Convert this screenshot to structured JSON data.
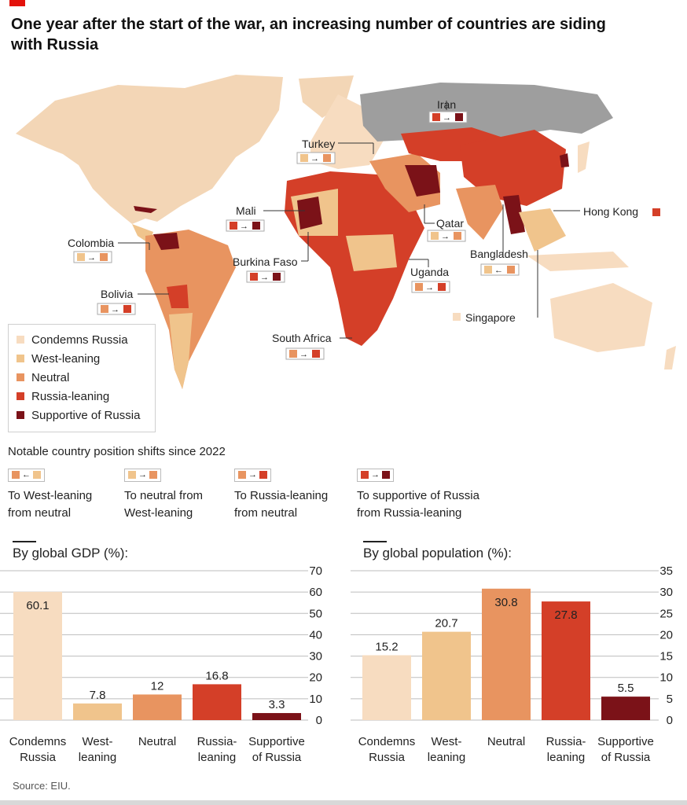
{
  "title": "One year after the start of the war, an increasing number of countries are siding with Russia",
  "colors": {
    "condemns": "#f7dcc0",
    "west": "#f0c48c",
    "neutral": "#e89460",
    "russia_leaning": "#d43f28",
    "supportive": "#7b1218",
    "no_data": "#9e9e9e"
  },
  "legend": [
    {
      "label": "Condemns Russia",
      "color": "#f7dcc0"
    },
    {
      "label": "West-leaning",
      "color": "#f0c48c"
    },
    {
      "label": "Neutral",
      "color": "#e89460"
    },
    {
      "label": "Russia-leaning",
      "color": "#d43f28"
    },
    {
      "label": "Supportive of Russia",
      "color": "#7b1218"
    }
  ],
  "map_labels": {
    "iran": "Iran",
    "turkey": "Turkey",
    "mali": "Mali",
    "colombia": "Colombia",
    "burkina_faso": "Burkina Faso",
    "bolivia": "Bolivia",
    "qatar": "Qatar",
    "hong_kong": "Hong Kong",
    "bangladesh": "Bangladesh",
    "uganda": "Uganda",
    "singapore": "Singapore",
    "south_africa": "South Africa"
  },
  "shifts": {
    "title": "Notable country position shifts since 2022",
    "items": [
      {
        "text": "To West-leaning\nfrom neutral",
        "from": "#e89460",
        "to": "#f0c48c",
        "arrow": "←"
      },
      {
        "text": "To neutral from\nWest-leaning",
        "from": "#f0c48c",
        "to": "#e89460",
        "arrow": "→"
      },
      {
        "text": "To Russia-leaning\nfrom neutral",
        "from": "#e89460",
        "to": "#d43f28",
        "arrow": "→"
      },
      {
        "text": "To supportive of Russia\nfrom Russia-leaning",
        "from": "#d43f28",
        "to": "#7b1218",
        "arrow": "→"
      }
    ]
  },
  "chart_data": [
    {
      "type": "bar",
      "title": "By global GDP (%):",
      "categories": [
        "Condemns\nRussia",
        "West-\nleaning",
        "Neutral",
        "Russia-\nleaning",
        "Supportive\nof Russia"
      ],
      "values": [
        60.1,
        7.8,
        12,
        16.8,
        3.3
      ],
      "value_labels": [
        "60.1",
        "7.8",
        "12",
        "16.8",
        "3.3"
      ],
      "colors": [
        "#f7dcc0",
        "#f0c48c",
        "#e89460",
        "#d43f28",
        "#7b1218"
      ],
      "ylim": [
        0,
        70
      ],
      "yticks": [
        0,
        10,
        20,
        30,
        40,
        50,
        60,
        70
      ],
      "grid": true,
      "axis_side": "right"
    },
    {
      "type": "bar",
      "title": "By global population (%):",
      "categories": [
        "Condemns\nRussia",
        "West-\nleaning",
        "Neutral",
        "Russia-\nleaning",
        "Supportive\nof Russia"
      ],
      "values": [
        15.2,
        20.7,
        30.8,
        27.8,
        5.5
      ],
      "value_labels": [
        "15.2",
        "20.7",
        "30.8",
        "27.8",
        "5.5"
      ],
      "colors": [
        "#f7dcc0",
        "#f0c48c",
        "#e89460",
        "#d43f28",
        "#7b1218"
      ],
      "ylim": [
        0,
        35
      ],
      "yticks": [
        0,
        5,
        10,
        15,
        20,
        25,
        30,
        35
      ],
      "grid": true,
      "axis_side": "right"
    }
  ],
  "source": "Source: EIU."
}
